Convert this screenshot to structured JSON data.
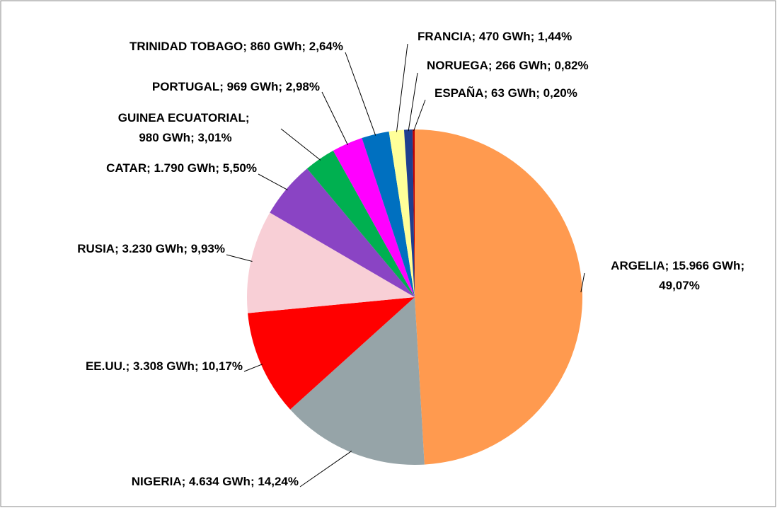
{
  "chart_data": {
    "type": "pie",
    "categories": [
      "ARGELIA",
      "NIGERIA",
      "EE.UU.",
      "RUSIA",
      "CATAR",
      "GUINEA ECUATORIAL",
      "PORTUGAL",
      "TRINIDAD TOBAGO",
      "FRANCIA",
      "NORUEGA",
      "ESPAÑA"
    ],
    "values": [
      15966,
      4634,
      3308,
      3230,
      1790,
      980,
      969,
      860,
      470,
      266,
      63
    ],
    "value_labels": [
      "15.966 GWh",
      "4.634 GWh",
      "3.308 GWh",
      "3.230 GWh",
      "1.790 GWh",
      "980 GWh",
      "969 GWh",
      "860 GWh",
      "470 GWh",
      "266 GWh",
      "63 GWh"
    ],
    "percentages": [
      49.07,
      14.24,
      10.17,
      9.93,
      5.5,
      3.01,
      2.98,
      2.64,
      1.44,
      0.82,
      0.2
    ],
    "percentage_labels": [
      "49,07%",
      "14,24%",
      "10,17%",
      "9,93%",
      "5,50%",
      "3,01%",
      "2,98%",
      "2,64%",
      "1,44%",
      "0,82%",
      "0,20%"
    ],
    "separator": "; ",
    "colors": [
      "#ff9a4f",
      "#96a4a8",
      "#ff0000",
      "#f8cfd6",
      "#8a44c4",
      "#00b050",
      "#ff00ff",
      "#0070c0",
      "#ffff99",
      "#1f3f8f",
      "#c00000"
    ]
  }
}
